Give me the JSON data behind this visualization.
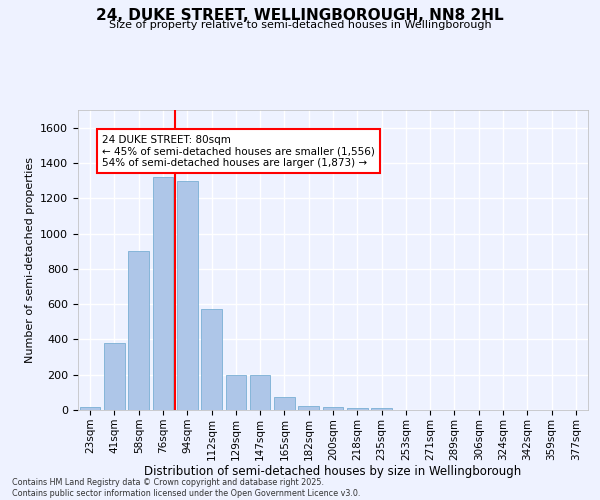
{
  "title": "24, DUKE STREET, WELLINGBOROUGH, NN8 2HL",
  "subtitle": "Size of property relative to semi-detached houses in Wellingborough",
  "xlabel": "Distribution of semi-detached houses by size in Wellingborough",
  "ylabel": "Number of semi-detached properties",
  "categories": [
    "23sqm",
    "41sqm",
    "58sqm",
    "76sqm",
    "94sqm",
    "112sqm",
    "129sqm",
    "147sqm",
    "165sqm",
    "182sqm",
    "200sqm",
    "218sqm",
    "235sqm",
    "253sqm",
    "271sqm",
    "289sqm",
    "306sqm",
    "324sqm",
    "342sqm",
    "359sqm",
    "377sqm"
  ],
  "values": [
    18,
    380,
    900,
    1320,
    1300,
    570,
    200,
    200,
    75,
    25,
    15,
    10,
    10,
    0,
    0,
    0,
    0,
    0,
    0,
    0,
    0
  ],
  "bar_color": "#aec6e8",
  "bar_edge_color": "#7aafd4",
  "red_line_x": 3.5,
  "annotation_title": "24 DUKE STREET: 80sqm",
  "annotation_line1": "← 45% of semi-detached houses are smaller (1,556)",
  "annotation_line2": "54% of semi-detached houses are larger (1,873) →",
  "ylim": [
    0,
    1700
  ],
  "yticks": [
    0,
    200,
    400,
    600,
    800,
    1000,
    1200,
    1400,
    1600
  ],
  "background_color": "#eef2ff",
  "grid_color": "#ffffff",
  "footer_line1": "Contains HM Land Registry data © Crown copyright and database right 2025.",
  "footer_line2": "Contains public sector information licensed under the Open Government Licence v3.0."
}
